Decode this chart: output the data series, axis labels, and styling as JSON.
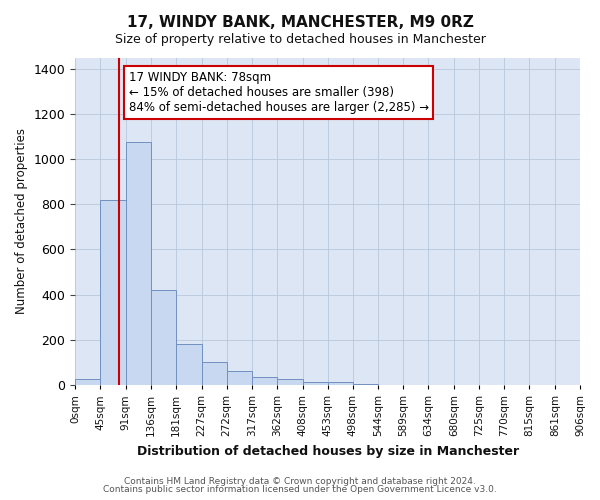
{
  "title": "17, WINDY BANK, MANCHESTER, M9 0RZ",
  "subtitle": "Size of property relative to detached houses in Manchester",
  "xlabel": "Distribution of detached houses by size in Manchester",
  "ylabel": "Number of detached properties",
  "bar_color": "#c8d8f0",
  "bar_edge_color": "#7090c0",
  "plot_bg_color": "#dde6f4",
  "fig_bg_color": "#ffffff",
  "grid_color": "#b8c8dc",
  "red_line_x": 78,
  "annotation_line1": "17 WINDY BANK: 78sqm",
  "annotation_line2": "← 15% of detached houses are smaller (398)",
  "annotation_line3": "84% of semi-detached houses are larger (2,285) →",
  "annotation_box_color": "#ffffff",
  "annotation_box_edge": "#cc0000",
  "ylim": [
    0,
    1450
  ],
  "yticks": [
    0,
    200,
    400,
    600,
    800,
    1000,
    1200,
    1400
  ],
  "bin_edges": [
    0,
    45,
    91,
    136,
    181,
    227,
    272,
    317,
    362,
    408,
    453,
    498,
    544,
    589,
    634,
    680,
    725,
    770,
    815,
    861,
    906
  ],
  "bin_labels": [
    "0sqm",
    "45sqm",
    "91sqm",
    "136sqm",
    "181sqm",
    "227sqm",
    "272sqm",
    "317sqm",
    "362sqm",
    "408sqm",
    "453sqm",
    "498sqm",
    "544sqm",
    "589sqm",
    "634sqm",
    "680sqm",
    "725sqm",
    "770sqm",
    "815sqm",
    "861sqm",
    "906sqm"
  ],
  "bar_heights": [
    25,
    820,
    1075,
    420,
    180,
    100,
    60,
    37,
    25,
    15,
    15,
    5,
    1,
    0,
    0,
    0,
    0,
    0,
    0,
    1
  ],
  "footer_text1": "Contains HM Land Registry data © Crown copyright and database right 2024.",
  "footer_text2": "Contains public sector information licensed under the Open Government Licence v3.0."
}
